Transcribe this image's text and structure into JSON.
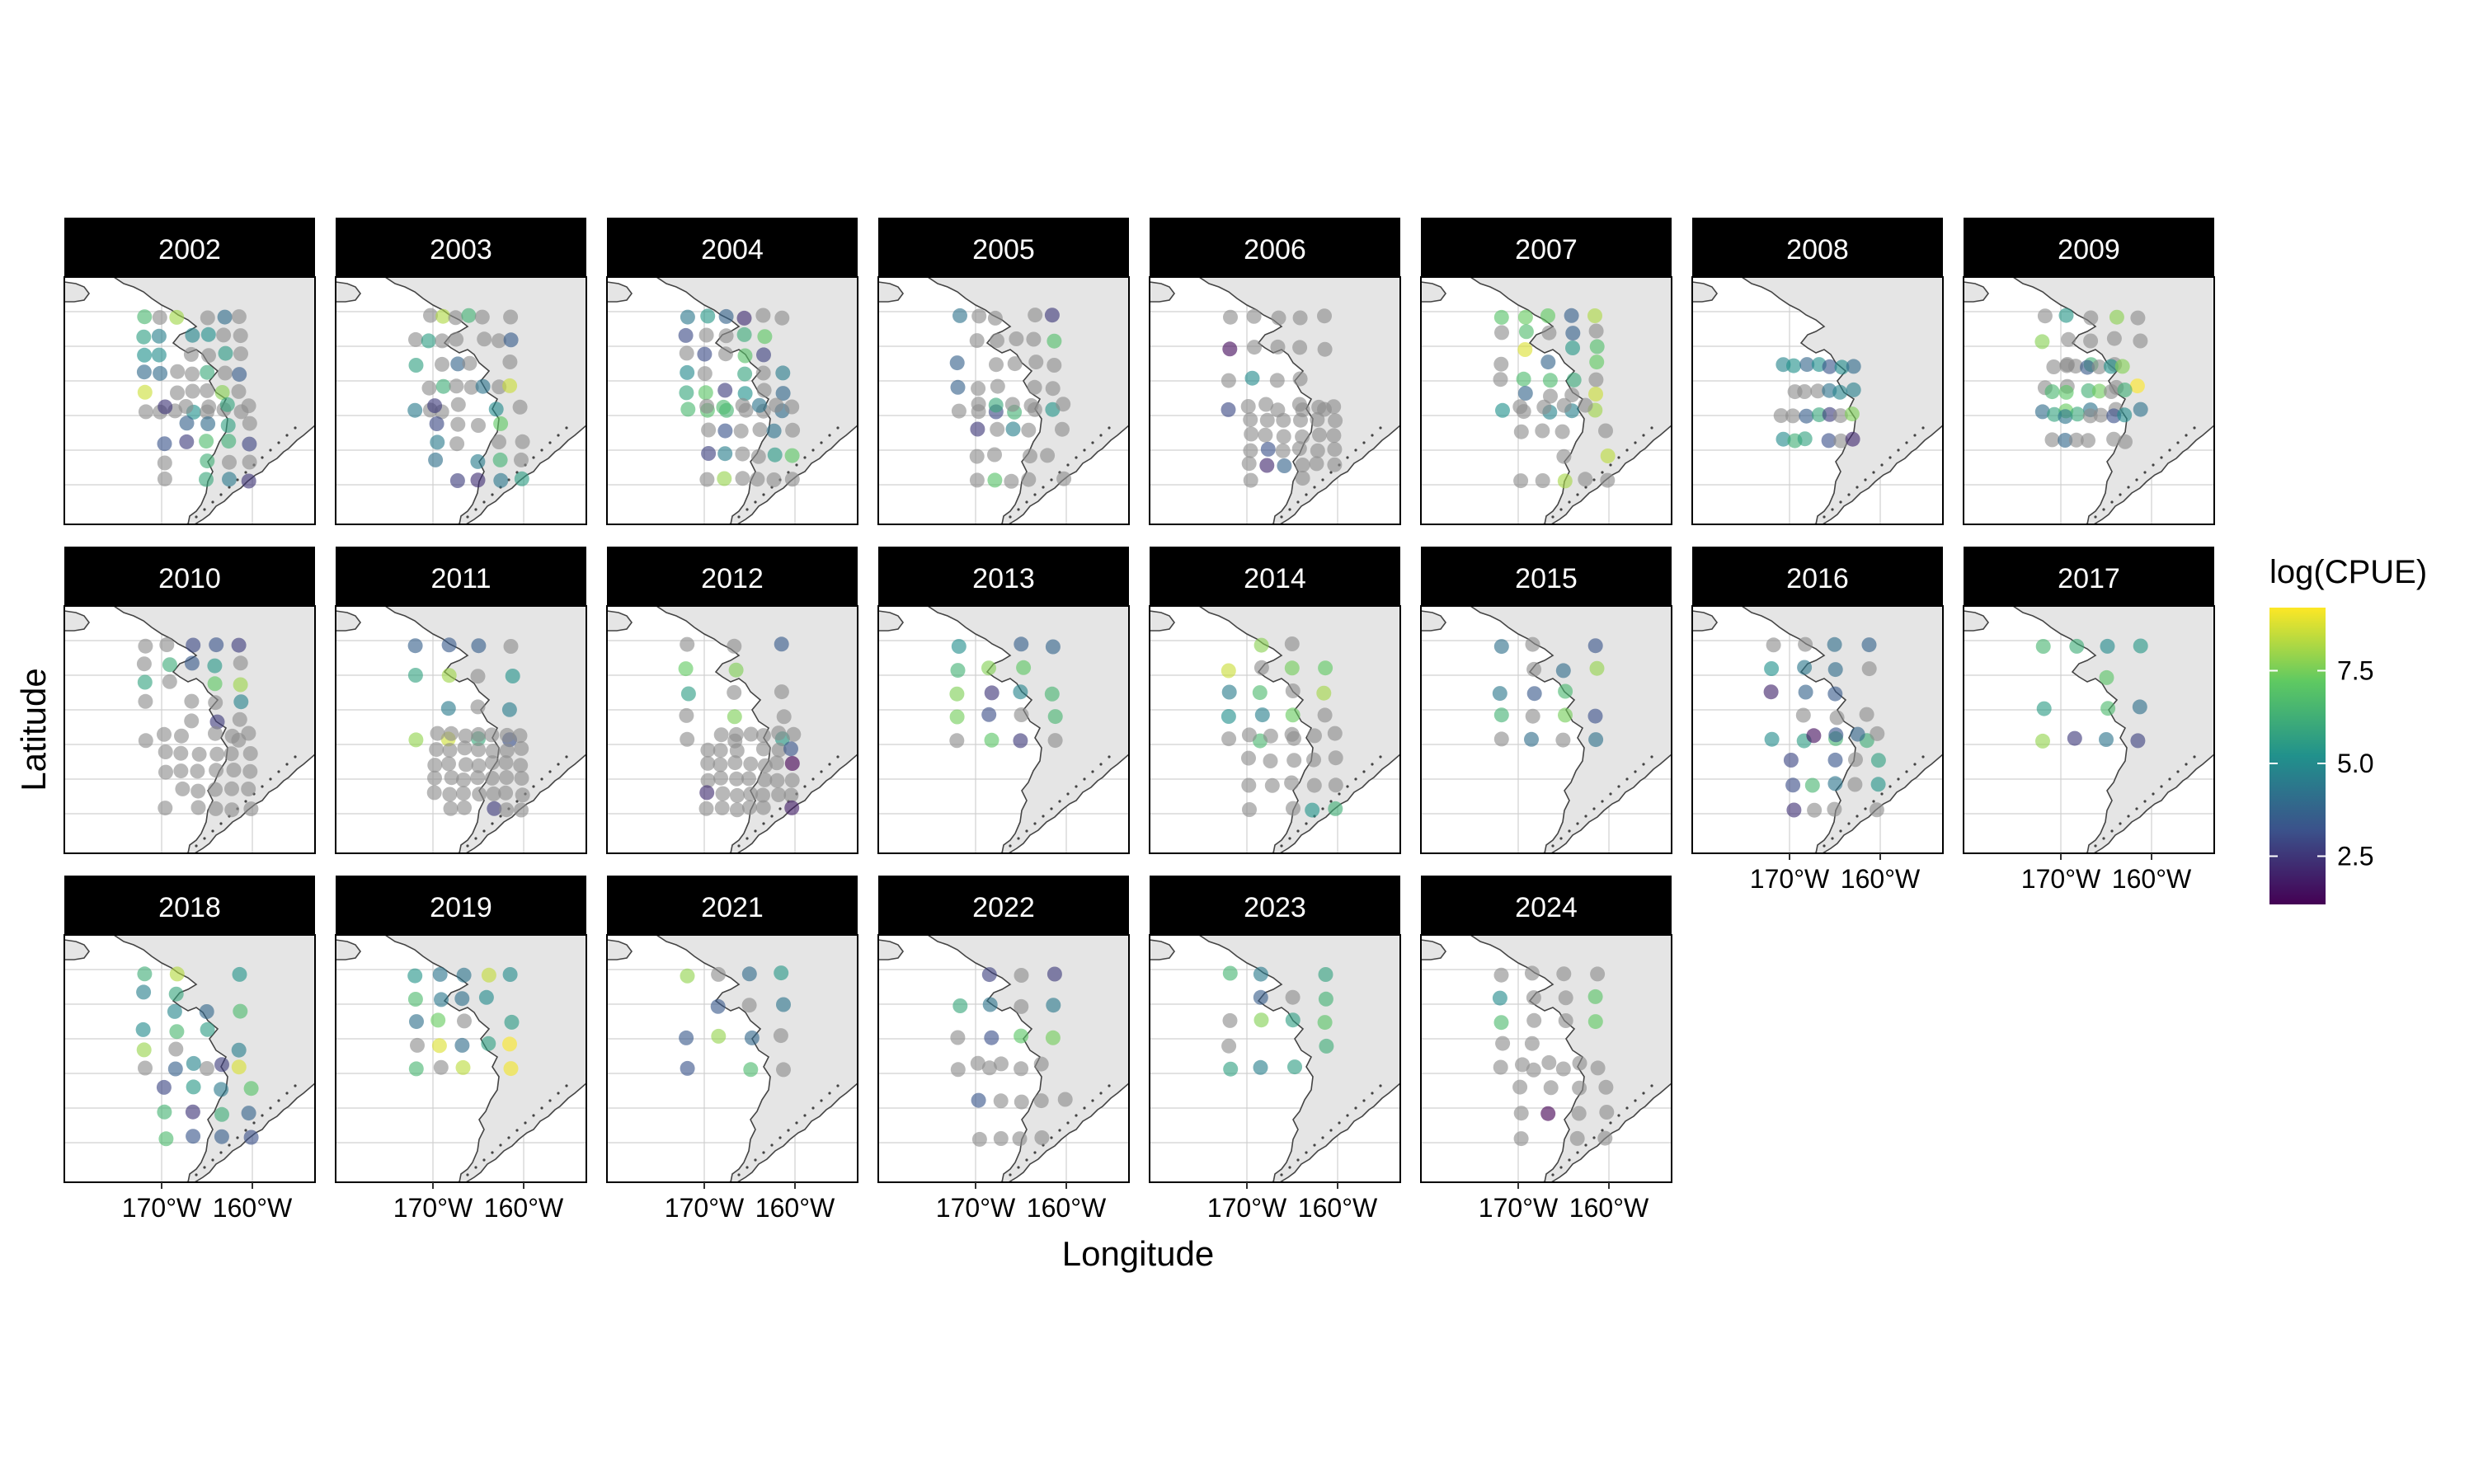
{
  "chart_data": {
    "type": "faceted-map",
    "xlabel": "Longitude",
    "ylabel": "Latitude",
    "x_ticks": [
      "170°W",
      "160°W"
    ],
    "legend": {
      "title": "log(CPUE)",
      "ticks": [
        2.5,
        5.0,
        7.5
      ],
      "range": [
        1.2,
        9.2
      ],
      "palette": [
        "#440154",
        "#3b528b",
        "#21918c",
        "#5ec962",
        "#fde725"
      ],
      "placement": "right"
    },
    "no_catch_color": "#8c8c8c",
    "land_color": "#e5e5e5",
    "facets": [
      {
        "year": "2002"
      },
      {
        "year": "2003"
      },
      {
        "year": "2004"
      },
      {
        "year": "2005"
      },
      {
        "year": "2006"
      },
      {
        "year": "2007"
      },
      {
        "year": "2008"
      },
      {
        "year": "2009"
      },
      {
        "year": "2010"
      },
      {
        "year": "2011"
      },
      {
        "year": "2012"
      },
      {
        "year": "2013"
      },
      {
        "year": "2014"
      },
      {
        "year": "2015"
      },
      {
        "year": "2016"
      },
      {
        "year": "2017"
      },
      {
        "year": "2018"
      },
      {
        "year": "2019"
      },
      {
        "year": "2021"
      },
      {
        "year": "2022"
      },
      {
        "year": "2023"
      },
      {
        "year": "2024"
      }
    ]
  }
}
